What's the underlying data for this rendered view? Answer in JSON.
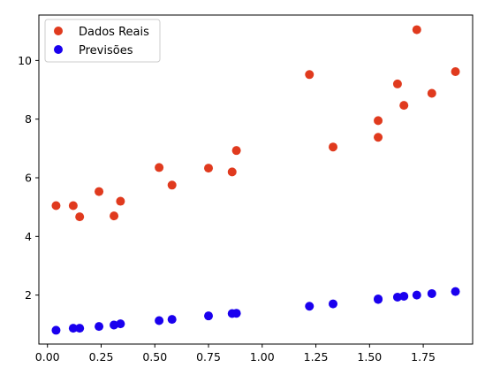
{
  "chart_data": {
    "type": "scatter",
    "title": "",
    "xlabel": "",
    "ylabel": "",
    "xlim": [
      -0.04,
      1.98
    ],
    "ylim": [
      0.33,
      11.55
    ],
    "xticks": [
      "0.00",
      "0.25",
      "0.50",
      "0.75",
      "1.00",
      "1.25",
      "1.50",
      "1.75"
    ],
    "yticks": [
      "2",
      "4",
      "6",
      "8",
      "10"
    ],
    "grid": false,
    "legend_position": "top-left",
    "series": [
      {
        "name": "Dados Reais",
        "color": "#e03a1e",
        "points": [
          [
            0.04,
            5.05
          ],
          [
            0.12,
            5.05
          ],
          [
            0.15,
            4.67
          ],
          [
            0.24,
            5.53
          ],
          [
            0.31,
            4.7
          ],
          [
            0.34,
            5.2
          ],
          [
            0.52,
            6.35
          ],
          [
            0.58,
            5.75
          ],
          [
            0.75,
            6.33
          ],
          [
            0.86,
            6.2
          ],
          [
            0.88,
            6.93
          ],
          [
            1.22,
            9.52
          ],
          [
            1.33,
            7.05
          ],
          [
            1.54,
            7.95
          ],
          [
            1.54,
            7.38
          ],
          [
            1.63,
            9.2
          ],
          [
            1.66,
            8.47
          ],
          [
            1.72,
            11.05
          ],
          [
            1.79,
            8.88
          ],
          [
            1.9,
            9.62
          ]
        ]
      },
      {
        "name": "Previsões",
        "color": "#1a00ee",
        "points": [
          [
            0.04,
            0.8
          ],
          [
            0.12,
            0.87
          ],
          [
            0.15,
            0.87
          ],
          [
            0.24,
            0.93
          ],
          [
            0.31,
            0.98
          ],
          [
            0.34,
            1.02
          ],
          [
            0.52,
            1.13
          ],
          [
            0.58,
            1.17
          ],
          [
            0.75,
            1.29
          ],
          [
            0.86,
            1.37
          ],
          [
            0.88,
            1.38
          ],
          [
            1.22,
            1.62
          ],
          [
            1.33,
            1.7
          ],
          [
            1.54,
            1.85
          ],
          [
            1.54,
            1.87
          ],
          [
            1.63,
            1.93
          ],
          [
            1.66,
            1.96
          ],
          [
            1.72,
            2.0
          ],
          [
            1.79,
            2.05
          ],
          [
            1.9,
            2.12
          ]
        ]
      }
    ]
  }
}
